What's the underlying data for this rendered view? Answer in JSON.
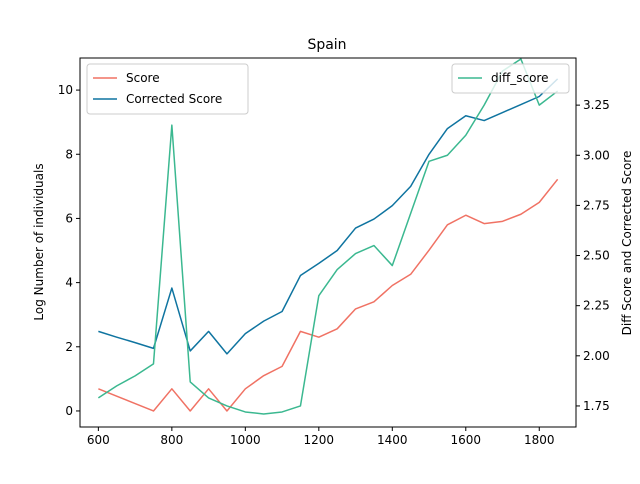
{
  "chart_data": {
    "type": "line",
    "title": "Spain",
    "xlabel": "",
    "ylabel_left": "Log Number of individuals",
    "ylabel_right": "Diff Score and Corrected Score",
    "xlim": [
      550,
      1900
    ],
    "ylim_left": [
      -0.5,
      11.0
    ],
    "ylim_right": [
      1.645,
      3.485
    ],
    "xticks": [
      600,
      800,
      1000,
      1200,
      1400,
      1600,
      1800
    ],
    "yticks_left": [
      0,
      2,
      4,
      6,
      8,
      10
    ],
    "yticks_right": [
      1.75,
      2.0,
      2.25,
      2.5,
      2.75,
      3.0,
      3.25
    ],
    "yticks_right_labels": [
      "1.75",
      "2.00",
      "2.25",
      "2.50",
      "2.75",
      "3.00",
      "3.25"
    ],
    "grid": false,
    "legend_left_position": "upper left",
    "legend_right_position": "upper right",
    "x": [
      600,
      650,
      700,
      750,
      800,
      850,
      900,
      950,
      1000,
      1050,
      1100,
      1150,
      1200,
      1250,
      1300,
      1350,
      1400,
      1450,
      1500,
      1550,
      1600,
      1650,
      1700,
      1750,
      1800,
      1850
    ],
    "series": [
      {
        "name": "Score",
        "axis": "left",
        "color": "#f07264",
        "values": [
          0.69,
          0.46,
          0.23,
          0.0,
          0.69,
          0.0,
          0.69,
          0.0,
          0.69,
          1.1,
          1.39,
          2.48,
          2.3,
          2.56,
          3.18,
          3.4,
          3.91,
          4.26,
          5.01,
          5.8,
          6.1,
          5.84,
          5.91,
          6.13,
          6.5,
          7.22
        ]
      },
      {
        "name": "Corrected Score",
        "axis": "left",
        "color": "#0f74a0",
        "values": [
          2.48,
          2.3,
          2.13,
          1.95,
          3.83,
          1.87,
          2.48,
          1.78,
          2.41,
          2.8,
          3.1,
          4.22,
          4.6,
          5.0,
          5.7,
          5.98,
          6.4,
          7.0,
          8.0,
          8.8,
          9.2,
          9.05,
          9.3,
          9.55,
          9.8,
          10.35
        ]
      },
      {
        "name": "diff_score",
        "axis": "right",
        "color": "#3bb890",
        "values": [
          1.79,
          1.85,
          1.9,
          1.96,
          3.15,
          1.87,
          1.79,
          1.75,
          1.72,
          1.71,
          1.72,
          1.75,
          2.3,
          2.43,
          2.51,
          2.55,
          2.45,
          2.71,
          2.97,
          3.0,
          3.1,
          3.25,
          3.42,
          3.48,
          3.25,
          3.32
        ]
      }
    ]
  }
}
